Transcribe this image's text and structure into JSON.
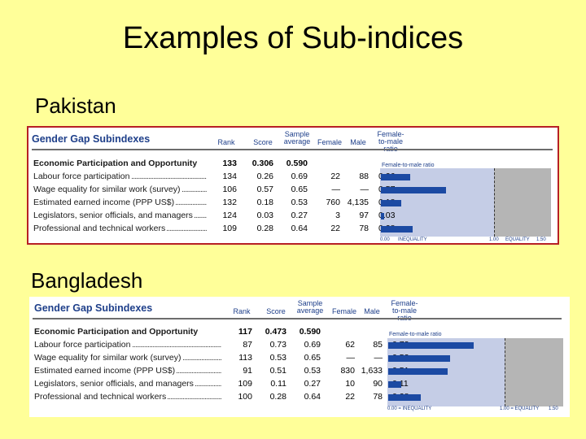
{
  "title": "Examples of Sub-indices",
  "panels": [
    {
      "country": "Pakistan",
      "table_title": "Gender Gap Subindexes",
      "headers": {
        "rank": "Rank",
        "score": "Score",
        "sample": "Sample average",
        "female": "Female",
        "male": "Male",
        "ratio": "Female-to-male ratio"
      },
      "bars_title": "Female-to-male ratio",
      "axis": {
        "zero": "0.00",
        "inequality": "INEQUALITY",
        "one": "1.00",
        "equality": "EQUALITY",
        "max": "1.50"
      },
      "rows": [
        {
          "label": "Economic Participation and Opportunity",
          "bold": true,
          "rank": "133",
          "score": "0.306",
          "sample": "0.590",
          "female": "",
          "male": "",
          "ratio": ""
        },
        {
          "label": "Labour force participation",
          "bold": false,
          "rank": "134",
          "score": "0.26",
          "sample": "0.69",
          "female": "22",
          "male": "88",
          "ratio": "0.26"
        },
        {
          "label": "Wage equality for similar work (survey)",
          "bold": false,
          "rank": "106",
          "score": "0.57",
          "sample": "0.65",
          "female": "—",
          "male": "—",
          "ratio": "0.57"
        },
        {
          "label": "Estimated earned income (PPP US$)",
          "bold": false,
          "rank": "132",
          "score": "0.18",
          "sample": "0.53",
          "female": "760",
          "male": "4,135",
          "ratio": "0.18"
        },
        {
          "label": "Legislators, senior officials, and managers",
          "bold": false,
          "rank": "124",
          "score": "0.03",
          "sample": "0.27",
          "female": "3",
          "male": "97",
          "ratio": "0.03"
        },
        {
          "label": "Professional and technical workers",
          "bold": false,
          "rank": "109",
          "score": "0.28",
          "sample": "0.64",
          "female": "22",
          "male": "78",
          "ratio": "0.28"
        }
      ],
      "bar_values": [
        0.26,
        0.57,
        0.18,
        0.03,
        0.28
      ]
    },
    {
      "country": "Bangladesh",
      "table_title": "Gender Gap Subindexes",
      "headers": {
        "rank": "Rank",
        "score": "Score",
        "sample": "Sample average",
        "female": "Female",
        "male": "Male",
        "ratio": "Female-to-male ratio"
      },
      "bars_title": "Female-to-male ratio",
      "axis": {
        "zero": "0.00 = INEQUALITY",
        "inequality": "",
        "one": "1.00 = EQUALITY",
        "equality": "",
        "max": "1.50"
      },
      "rows": [
        {
          "label": "Economic Participation and Opportunity",
          "bold": true,
          "rank": "117",
          "score": "0.473",
          "sample": "0.590",
          "female": "",
          "male": "",
          "ratio": ""
        },
        {
          "label": "Labour force participation",
          "bold": false,
          "rank": "87",
          "score": "0.73",
          "sample": "0.69",
          "female": "62",
          "male": "85",
          "ratio": "0.73"
        },
        {
          "label": "Wage equality for similar work (survey)",
          "bold": false,
          "rank": "113",
          "score": "0.53",
          "sample": "0.65",
          "female": "—",
          "male": "—",
          "ratio": "0.53"
        },
        {
          "label": "Estimated earned income (PPP US$)",
          "bold": false,
          "rank": "91",
          "score": "0.51",
          "sample": "0.53",
          "female": "830",
          "male": "1,633",
          "ratio": "0.51"
        },
        {
          "label": "Legislators, senior officials, and managers",
          "bold": false,
          "rank": "109",
          "score": "0.11",
          "sample": "0.27",
          "female": "10",
          "male": "90",
          "ratio": "0.11"
        },
        {
          "label": "Professional and technical workers",
          "bold": false,
          "rank": "100",
          "score": "0.28",
          "sample": "0.64",
          "female": "22",
          "male": "78",
          "ratio": "0.28"
        }
      ],
      "bar_values": [
        0.73,
        0.53,
        0.51,
        0.11,
        0.28
      ]
    }
  ]
}
